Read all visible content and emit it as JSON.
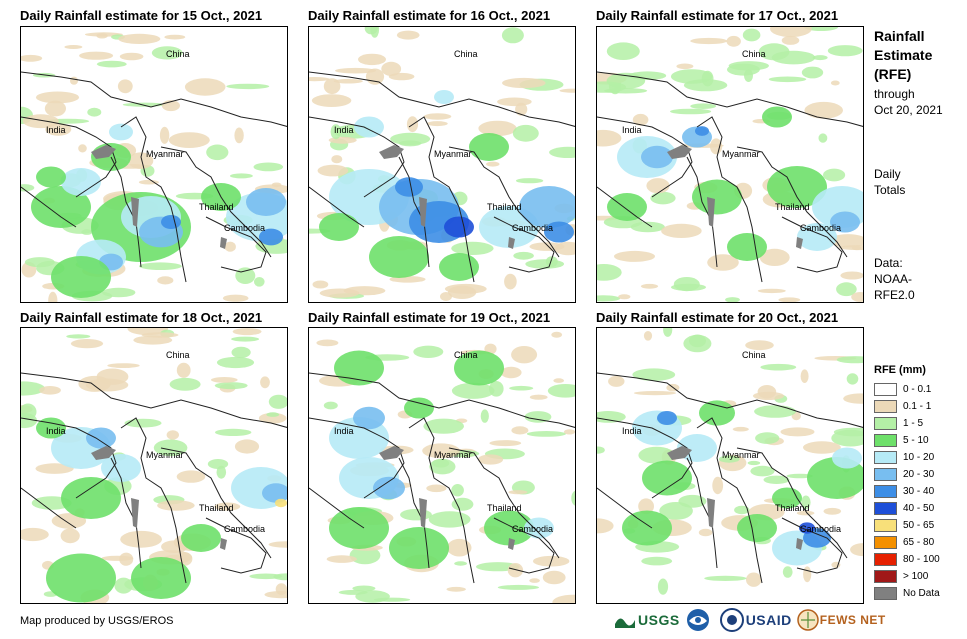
{
  "panels": [
    {
      "title": "Daily Rainfall estimate for 15 Oct., 2021"
    },
    {
      "title": "Daily Rainfall estimate for 16 Oct., 2021"
    },
    {
      "title": "Daily Rainfall estimate for 17 Oct., 2021"
    },
    {
      "title": "Daily Rainfall estimate for 18 Oct., 2021"
    },
    {
      "title": "Daily Rainfall estimate for 19 Oct., 2021"
    },
    {
      "title": "Daily Rainfall estimate for 20 Oct., 2021"
    }
  ],
  "map_labels": {
    "china": "China",
    "india": "India",
    "myanmar": "Myanmar",
    "thailand": "Thailand",
    "cambodia": "Cambodia"
  },
  "sidebar": {
    "title_line1": "Rainfall",
    "title_line2": "Estimate",
    "title_line3": "(RFE)",
    "through": "through",
    "date": "Oct 20, 2021",
    "daily": "Daily",
    "totals": "Totals",
    "data": "Data:",
    "noaa": "NOAA-",
    "rfe": "RFE2.0"
  },
  "legend": {
    "title": "RFE (mm)",
    "items": [
      {
        "label": "0 - 0.1",
        "color": "#ffffff"
      },
      {
        "label": "0.1 - 1",
        "color": "#ecd9b8"
      },
      {
        "label": "1 - 5",
        "color": "#b4f0a6"
      },
      {
        "label": "5 - 10",
        "color": "#6ee06a"
      },
      {
        "label": "10 - 20",
        "color": "#b6eaf6"
      },
      {
        "label": "20 - 30",
        "color": "#78bef0"
      },
      {
        "label": "30 - 40",
        "color": "#3d8ee6"
      },
      {
        "label": "40 - 50",
        "color": "#1e4fd8"
      },
      {
        "label": "50 - 65",
        "color": "#f8e07a"
      },
      {
        "label": "65 - 80",
        "color": "#f49000"
      },
      {
        "label": "80 - 100",
        "color": "#e62000"
      },
      {
        "label": "> 100",
        "color": "#a01818"
      },
      {
        "label": "No Data",
        "color": "#808080"
      }
    ]
  },
  "credit": "Map produced by USGS/EROS",
  "logos": {
    "usgs": "USGS",
    "usaid": "USAID",
    "fewsnet": "FEWS NET"
  }
}
